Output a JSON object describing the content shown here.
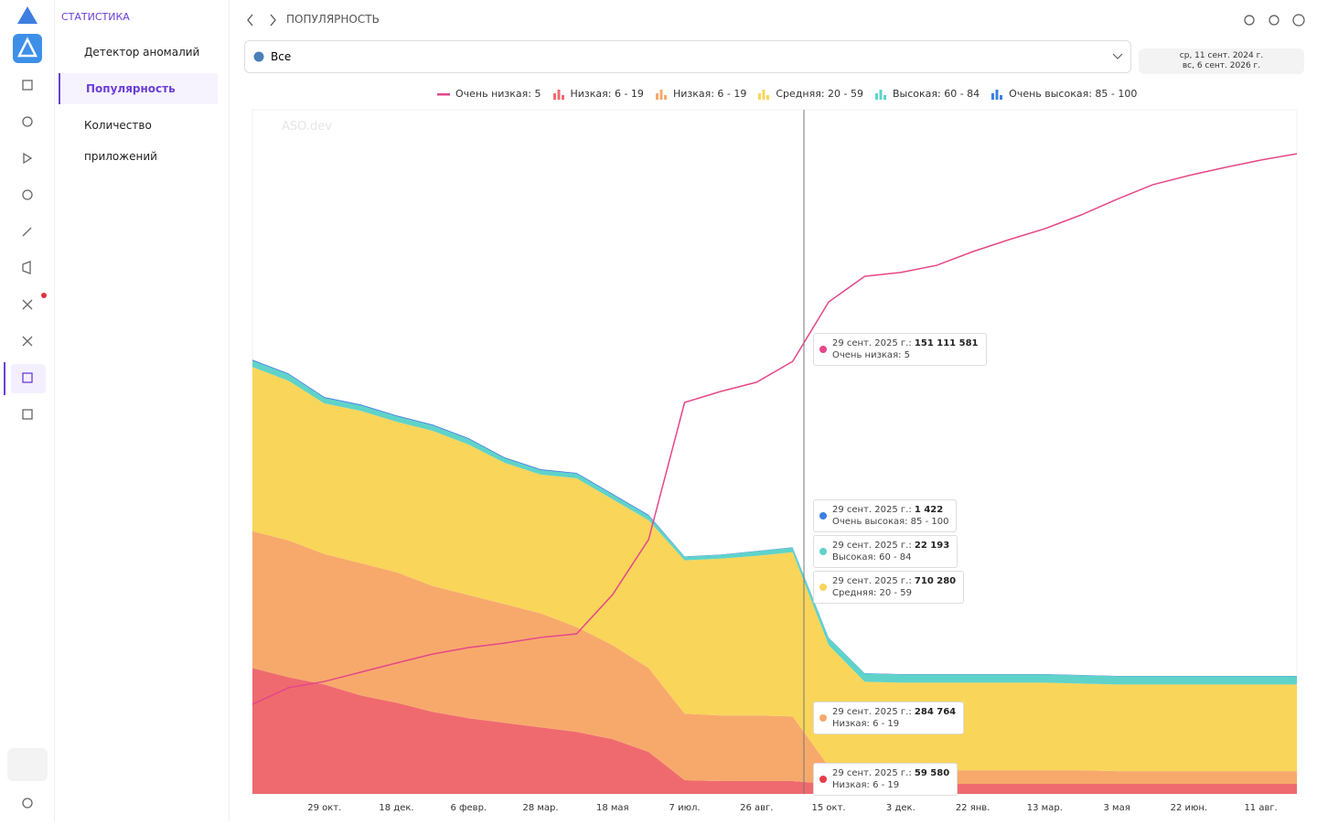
{
  "nav": {
    "section": "СТАТИСТИКА",
    "items": [
      "Детектор аномалий",
      "Популярность",
      "Количество приложений"
    ]
  },
  "header": {
    "title": "ПОПУЛЯРНОСТЬ",
    "filter": "Все",
    "date_from": "ср, 11 сент. 2024 г.",
    "date_to": "вс, 6 сент. 2026 г."
  },
  "watermark": "ASO.dev",
  "chart_data": {
    "type": "area",
    "stacked": true,
    "categories": [
      null,
      null,
      "29 окт.",
      null,
      "18 дек.",
      null,
      "6 февр.",
      null,
      "28 мар.",
      null,
      "18 мая",
      null,
      "7 июл.",
      null,
      "26 авг.",
      null,
      "15 окт.",
      null,
      "3 дек.",
      null,
      "22 янв.",
      null,
      "13 мар.",
      null,
      "3 мая",
      null,
      "22 июн.",
      null,
      "11 авг.",
      null
    ],
    "ylim": [
      0,
      3000000
    ],
    "y2lim": [
      0,
      230000000
    ],
    "series": [
      {
        "name": "Очень низкая: 5",
        "type": "line",
        "axis": "y2",
        "color": "#e5478a",
        "values": [
          30100000,
          35700000,
          37800000,
          40900000,
          44000000,
          47000000,
          49200000,
          50700000,
          52600000,
          53800000,
          67000000,
          85500000,
          131600000,
          135300000,
          138400000,
          145400000,
          165400000,
          174000000,
          175300000,
          177700000,
          182300000,
          186300000,
          190000000,
          194600000,
          199900000,
          204800000,
          207900000,
          210600000,
          213100000,
          215200000
        ]
      },
      {
        "name": "Низкая: 6 - 19",
        "color": "#ef6a6f",
        "values": [
          552000,
          512000,
          480000,
          432000,
          400000,
          360000,
          332000,
          312000,
          292000,
          272000,
          240000,
          184000,
          60000,
          56000,
          56000,
          56000,
          44000,
          44000,
          44000,
          44000,
          44000,
          44000,
          44000,
          44000,
          44000,
          44000,
          44000,
          44000,
          44000,
          44000
        ]
      },
      {
        "name": "Низкая: 6 - 19",
        "color": "#f7a96c",
        "values": [
          600000,
          600000,
          572000,
          580000,
          572000,
          552000,
          540000,
          520000,
          500000,
          460000,
          412000,
          368000,
          292000,
          288000,
          288000,
          284000,
          76000,
          64000,
          60000,
          60000,
          60000,
          60000,
          60000,
          60000,
          56000,
          56000,
          56000,
          56000,
          56000,
          56000
        ]
      },
      {
        "name": "Средняя: 20 - 59",
        "color": "#f9d55a",
        "values": [
          720000,
          700000,
          660000,
          668000,
          660000,
          680000,
          660000,
          620000,
          608000,
          652000,
          640000,
          648000,
          672000,
          688000,
          700000,
          720000,
          532000,
          384000,
          384000,
          384000,
          384000,
          384000,
          384000,
          380000,
          380000,
          380000,
          380000,
          380000,
          380000,
          380000
        ]
      },
      {
        "name": "Высокая: 60 - 84",
        "color": "#5fd3c9",
        "values": [
          28000,
          28000,
          24000,
          24000,
          24000,
          24000,
          24000,
          20000,
          20000,
          20000,
          20000,
          20000,
          16000,
          16000,
          20000,
          20000,
          32000,
          36000,
          36000,
          36000,
          36000,
          36000,
          36000,
          36000,
          36000,
          36000,
          36000,
          36000,
          36000,
          36000
        ]
      },
      {
        "name": "Очень высокая: 85 - 100",
        "color": "#3d7fe0",
        "values": [
          4000,
          4000,
          4000,
          4000,
          4000,
          4000,
          4000,
          4000,
          4000,
          4000,
          4000,
          4000,
          1500,
          1500,
          1500,
          1500,
          1500,
          1500,
          1500,
          1500,
          1500,
          1500,
          1500,
          1500,
          1500,
          1500,
          1500,
          1500,
          1500,
          1500
        ]
      }
    ],
    "tooltips": [
      {
        "date": "29 сент. 2025 г.:",
        "value_label": "151 111 581",
        "name": "Очень низкая: 5",
        "color": "#e5478a"
      },
      {
        "date": "29 сент. 2025 г.:",
        "value_label": "1 422",
        "name": "Очень высокая: 85 - 100",
        "color": "#3d7fe0"
      },
      {
        "date": "29 сент. 2025 г.:",
        "value_label": "22 193",
        "name": "Высокая: 60 - 84",
        "color": "#5fd3c9"
      },
      {
        "date": "29 сент. 2025 г.:",
        "value_label": "710 280",
        "name": "Средняя: 20 - 59",
        "color": "#f9d55a"
      },
      {
        "date": "29 сент. 2025 г.:",
        "value_label": "284 764",
        "name": "Низкая: 6 - 19",
        "color": "#f7a96c"
      },
      {
        "date": "29 сент. 2025 г.:",
        "value_label": "59 580",
        "name": "Низкая: 6 - 19",
        "color": "#e83c4a"
      }
    ]
  }
}
